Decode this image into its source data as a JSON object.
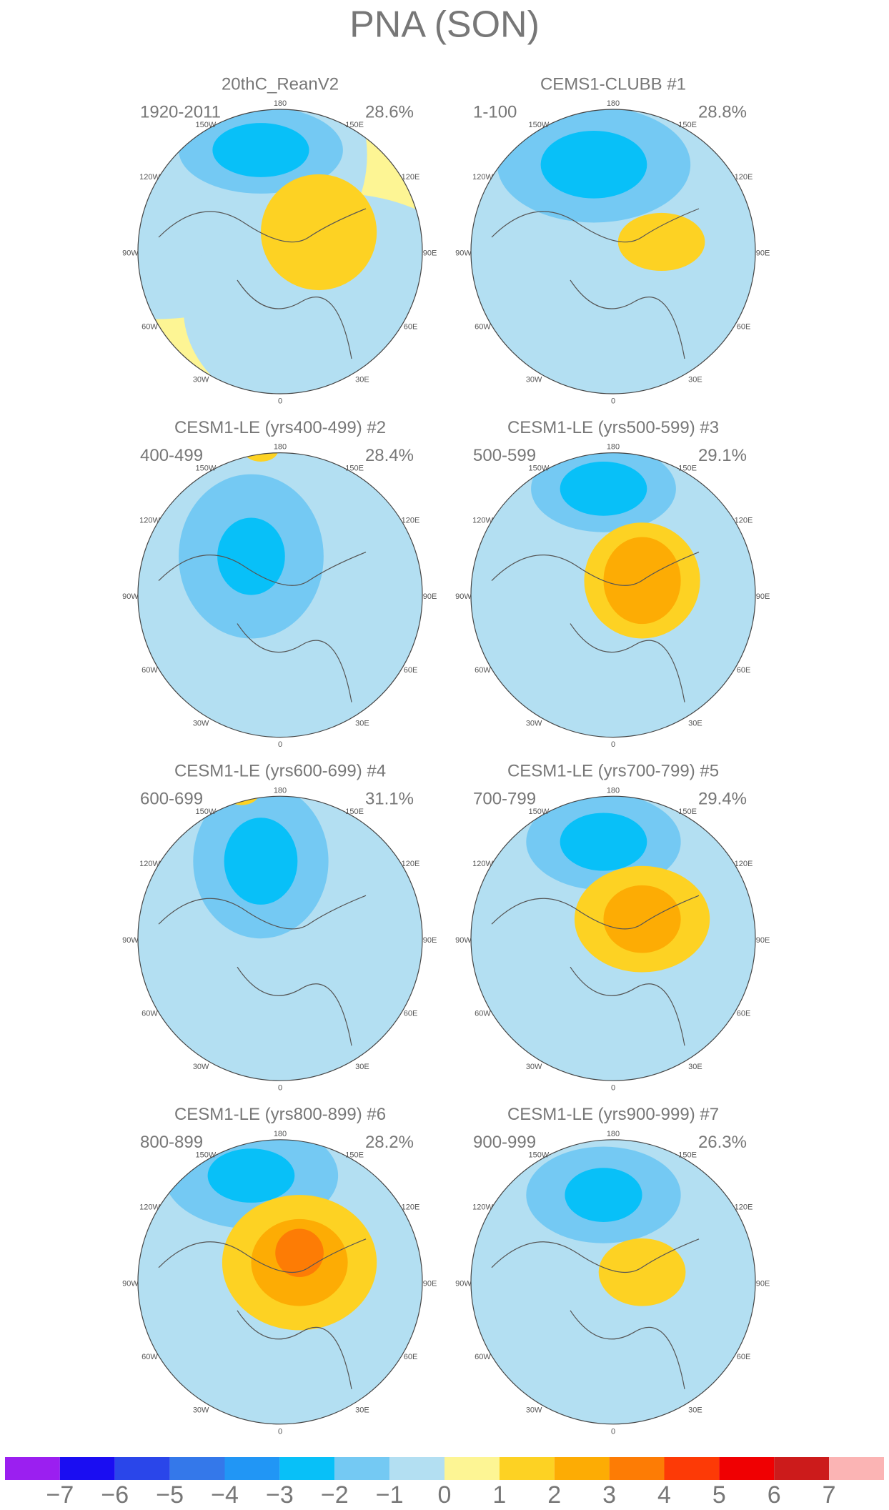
{
  "title": "PNA (SON)",
  "longitude_labels": [
    "180",
    "150W",
    "150E",
    "120W",
    "120E",
    "90W",
    "90E",
    "60W",
    "60E",
    "30W",
    "30E",
    "0"
  ],
  "panels": [
    {
      "title": "20thC_ReanV2",
      "period": "1920-2011",
      "variance": "28.6%"
    },
    {
      "title": "CEMS1-CLUBB      #1",
      "period": "1-100",
      "variance": "28.8%"
    },
    {
      "title": "CESM1-LE (yrs400-499) #2",
      "period": "400-499",
      "variance": "28.4%"
    },
    {
      "title": "CESM1-LE (yrs500-599) #3",
      "period": "500-599",
      "variance": "29.1%"
    },
    {
      "title": "CESM1-LE (yrs600-699) #4",
      "period": "600-699",
      "variance": "31.1%"
    },
    {
      "title": "CESM1-LE (yrs700-799) #5",
      "period": "700-799",
      "variance": "29.4%"
    },
    {
      "title": "CESM1-LE (yrs800-899) #6",
      "period": "800-899",
      "variance": "28.2%"
    },
    {
      "title": "CESM1-LE (yrs900-999) #7",
      "period": "900-999",
      "variance": "26.3%"
    }
  ],
  "colorbar": {
    "colors": [
      "#9b1ff0",
      "#1a0df2",
      "#2a46ea",
      "#3478ea",
      "#2196f5",
      "#08c0f8",
      "#74c9f3",
      "#b3dff2",
      "#fdf594",
      "#fdd223",
      "#fdac04",
      "#fd7c05",
      "#fd3a06",
      "#f00002",
      "#cc1b1b",
      "#fbb4b4"
    ],
    "labels": [
      "−7",
      "−6",
      "−5",
      "−4",
      "−3",
      "−2",
      "−1",
      "0",
      "1",
      "2",
      "3",
      "4",
      "5",
      "6",
      "7"
    ]
  }
}
